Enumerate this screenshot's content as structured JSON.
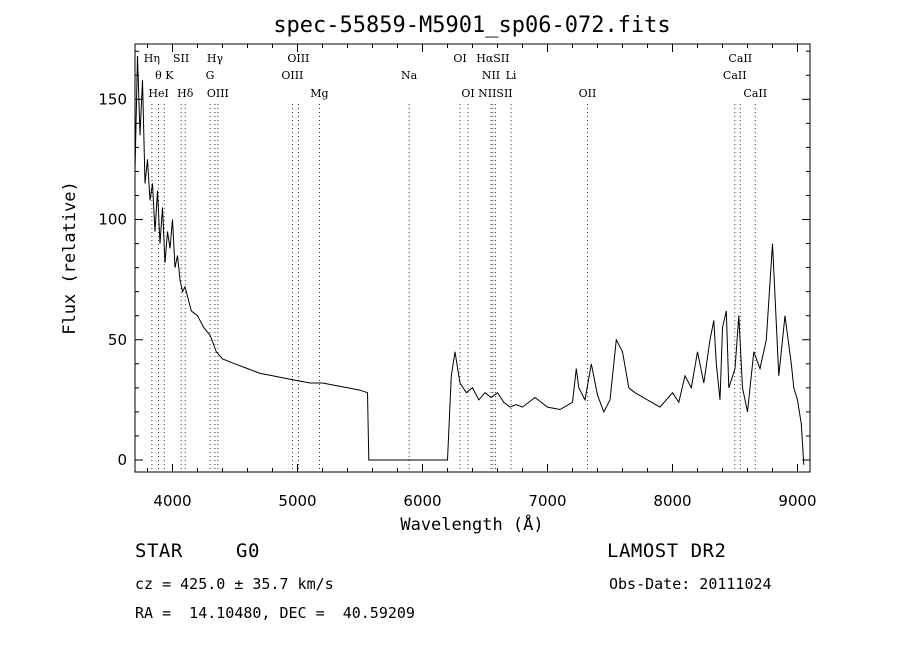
{
  "chart_data": {
    "type": "line",
    "title": "spec-55859-M5901_sp06-072.fits",
    "xlabel": "Wavelength (Å)",
    "ylabel": "Flux (relative)",
    "xlim": [
      3700,
      9100
    ],
    "ylim": [
      -5,
      173
    ],
    "x_ticks": [
      4000,
      5000,
      6000,
      7000,
      8000,
      9000
    ],
    "y_ticks": [
      0,
      50,
      100,
      150
    ],
    "series": [
      {
        "x": [
          3700,
          3720,
          3740,
          3760,
          3780,
          3800,
          3820,
          3840,
          3860,
          3880,
          3900,
          3920,
          3940,
          3960,
          3980,
          4000,
          4020,
          4040,
          4060,
          4080,
          4100,
          4150,
          4200,
          4250,
          4300,
          4350,
          4400,
          4500,
          4600,
          4700,
          4800,
          4900,
          5000,
          5100,
          5200,
          5300,
          5400,
          5500,
          5560,
          5570,
          6000,
          6200,
          6230,
          6260,
          6290,
          6300,
          6350,
          6400,
          6450,
          6500,
          6550,
          6600,
          6650,
          6700,
          6750,
          6800,
          6900,
          7000,
          7100,
          7200,
          7230,
          7250,
          7270,
          7300,
          7350,
          7400,
          7450,
          7500,
          7550,
          7600,
          7650,
          7700,
          7800,
          7900,
          8000,
          8050,
          8100,
          8150,
          8200,
          8250,
          8300,
          8330,
          8350,
          8380,
          8400,
          8430,
          8450,
          8500,
          8530,
          8560,
          8600,
          8650,
          8700,
          8750,
          8800,
          8850,
          8900,
          8950,
          8970,
          9000,
          9030,
          9050
        ],
        "y": [
          120,
          168,
          135,
          158,
          115,
          125,
          108,
          115,
          95,
          112,
          90,
          105,
          82,
          95,
          88,
          100,
          80,
          85,
          75,
          70,
          72,
          62,
          60,
          55,
          52,
          45,
          42,
          40,
          38,
          36,
          35,
          34,
          33,
          32,
          32,
          31,
          30,
          29,
          28,
          0,
          0,
          0,
          35,
          45,
          35,
          32,
          28,
          30,
          25,
          28,
          26,
          28,
          24,
          22,
          23,
          22,
          26,
          22,
          21,
          24,
          38,
          30,
          28,
          25,
          40,
          27,
          20,
          25,
          50,
          45,
          30,
          28,
          25,
          22,
          28,
          24,
          35,
          30,
          45,
          32,
          50,
          58,
          40,
          25,
          55,
          62,
          30,
          38,
          60,
          30,
          20,
          45,
          38,
          50,
          90,
          35,
          60,
          40,
          30,
          25,
          15,
          -2
        ]
      }
    ],
    "spectral_lines": [
      {
        "label": "Hη",
        "x": 3835,
        "row": 0
      },
      {
        "label": "θ K",
        "x": 3934,
        "row": 1
      },
      {
        "label": "HeI",
        "x": 3889,
        "row": 2
      },
      {
        "label": "SII",
        "x": 4069,
        "row": 0
      },
      {
        "label": "Hδ",
        "x": 4102,
        "row": 2
      },
      {
        "label": "Hγ",
        "x": 4340,
        "row": 0
      },
      {
        "label": "G",
        "x": 4300,
        "row": 1
      },
      {
        "label": "OIII",
        "x": 4363,
        "row": 2
      },
      {
        "label": "OIII",
        "x": 5007,
        "row": 0
      },
      {
        "label": "OIII",
        "x": 4959,
        "row": 1
      },
      {
        "label": "Mg",
        "x": 5175,
        "row": 2
      },
      {
        "label": "Na",
        "x": 5893,
        "row": 1
      },
      {
        "label": "OI",
        "x": 6300,
        "row": 0
      },
      {
        "label": "OI",
        "x": 6364,
        "row": 2
      },
      {
        "label": "HαSII",
        "x": 6563,
        "row": 0
      },
      {
        "label": "NII",
        "x": 6548,
        "row": 1
      },
      {
        "label": "Li",
        "x": 6708,
        "row": 1
      },
      {
        "label": "NIISII",
        "x": 6583,
        "row": 2
      },
      {
        "label": "OII",
        "x": 7320,
        "row": 2
      },
      {
        "label": "CaII",
        "x": 8542,
        "row": 0
      },
      {
        "label": "CaII",
        "x": 8498,
        "row": 1
      },
      {
        "label": "CaII",
        "x": 8662,
        "row": 2
      }
    ],
    "grid": false,
    "legend": "none"
  },
  "info": {
    "object_type": "STAR",
    "subclass": "G0",
    "survey": "LAMOST DR2",
    "cz": "cz = 425.0 ± 35.7 km/s",
    "obs_date": "Obs-Date: 20111024",
    "coords": "RA =  14.10480, DEC =  40.59209"
  }
}
